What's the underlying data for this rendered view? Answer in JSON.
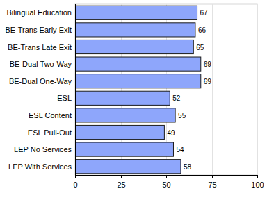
{
  "chart_data": {
    "type": "bar",
    "orientation": "horizontal",
    "categories": [
      "Bilingual Education",
      "BE-Trans Early Exit",
      "BE-Trans Late Exit",
      "BE-Dual Two-Way",
      "BE-Dual One-Way",
      "ESL",
      "ESL Content",
      "ESL Pull-Out",
      "LEP No Services",
      "LEP With Services"
    ],
    "values": [
      67,
      66,
      65,
      69,
      69,
      52,
      55,
      49,
      54,
      58
    ],
    "color": "#8ea6fb",
    "xlim": [
      0,
      100
    ],
    "xticks": [
      0,
      25,
      50,
      75,
      100
    ],
    "grid": true,
    "data_labels": true
  }
}
